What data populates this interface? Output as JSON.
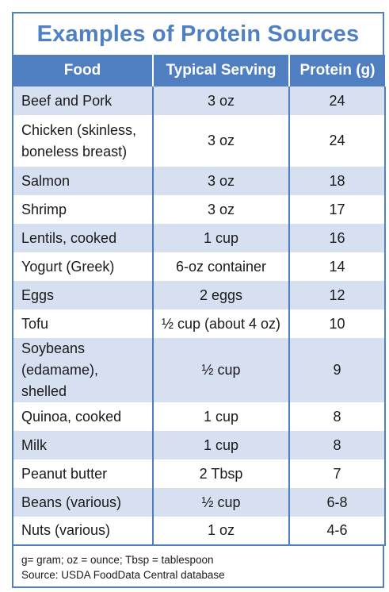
{
  "title": "Examples of Protein Sources",
  "columns": [
    "Food",
    "Typical Serving",
    "Protein (g)"
  ],
  "rows": [
    {
      "food": "Beef and Pork",
      "serving": "3 oz",
      "protein": "24"
    },
    {
      "food": "Chicken (skinless, boneless breast)",
      "serving": "3 oz",
      "protein": "24"
    },
    {
      "food": "Salmon",
      "serving": "3 oz",
      "protein": "18"
    },
    {
      "food": "Shrimp",
      "serving": "3 oz",
      "protein": "17"
    },
    {
      "food": "Lentils, cooked",
      "serving": "1 cup",
      "protein": "16"
    },
    {
      "food": "Yogurt (Greek)",
      "serving": "6-oz container",
      "protein": "14"
    },
    {
      "food": "Eggs",
      "serving": "2 eggs",
      "protein": "12"
    },
    {
      "food": "Tofu",
      "serving": "½ cup (about 4 oz)",
      "protein": "10"
    },
    {
      "food": "Soybeans (edamame), shelled",
      "serving": "½ cup",
      "protein": "9"
    },
    {
      "food": "Quinoa, cooked",
      "serving": "1 cup",
      "protein": "8"
    },
    {
      "food": "Milk",
      "serving": "1 cup",
      "protein": "8"
    },
    {
      "food": "Peanut butter",
      "serving": "2 Tbsp",
      "protein": "7"
    },
    {
      "food": "Beans (various)",
      "serving": "½ cup",
      "protein": "6-8"
    },
    {
      "food": "Nuts (various)",
      "serving": "1 oz",
      "protein": "4-6"
    }
  ],
  "footnote": {
    "abbreviations": "g= gram; oz = ounce; Tbsp = tablespoon",
    "source": "Source: USDA FoodData Central database"
  },
  "colors": {
    "accent": "#4f7fc1",
    "title": "#4f80c3",
    "stripe": "#d6e0f1"
  }
}
